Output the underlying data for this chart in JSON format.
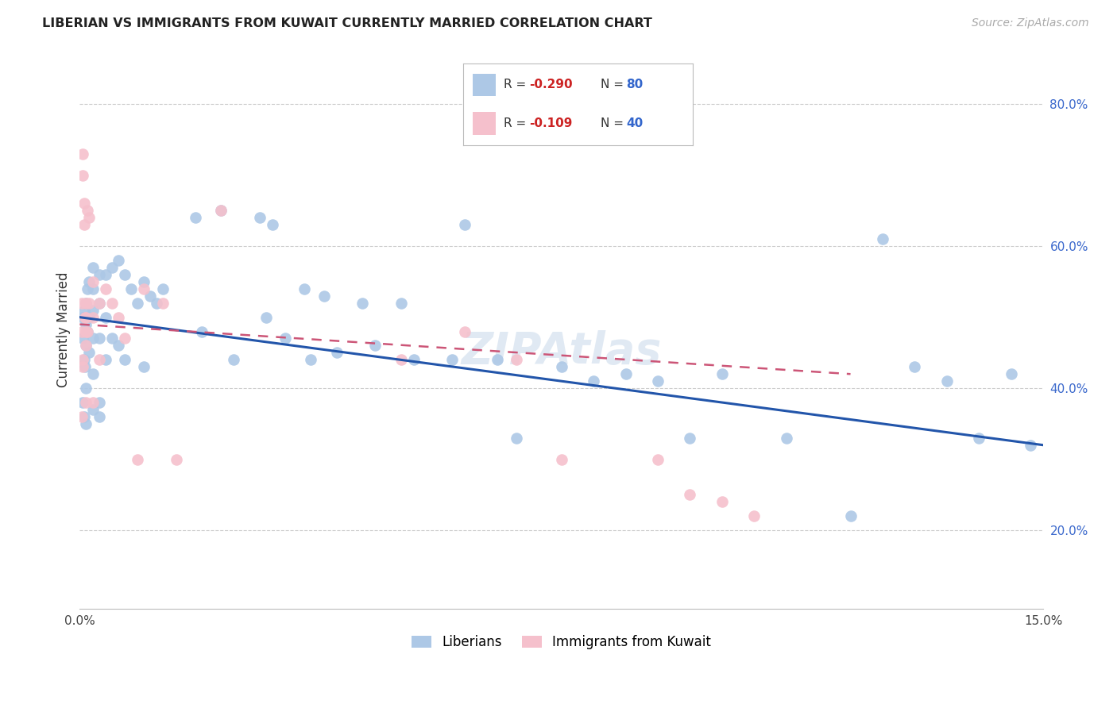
{
  "title": "LIBERIAN VS IMMIGRANTS FROM KUWAIT CURRENTLY MARRIED CORRELATION CHART",
  "source": "Source: ZipAtlas.com",
  "ylabel": "Currently Married",
  "legend_label_blue": "Liberians",
  "legend_label_pink": "Immigrants from Kuwait",
  "blue_color": "#adc8e6",
  "blue_line_color": "#2255aa",
  "pink_color": "#f5c0cc",
  "pink_line_color": "#cc5577",
  "background_color": "#ffffff",
  "grid_color": "#cccccc",
  "xlim": [
    0.0,
    0.15
  ],
  "ylim": [
    0.09,
    0.875
  ],
  "y_ticks": [
    0.2,
    0.4,
    0.6,
    0.8
  ],
  "y_tick_labels": [
    "20.0%",
    "40.0%",
    "60.0%",
    "80.0%"
  ],
  "blue_trend_x": [
    0.0,
    0.15
  ],
  "blue_trend_y": [
    0.5,
    0.32
  ],
  "pink_trend_x": [
    0.0,
    0.12
  ],
  "pink_trend_y": [
    0.49,
    0.42
  ],
  "blue_points_x": [
    0.0005,
    0.0005,
    0.0007,
    0.0007,
    0.0008,
    0.0008,
    0.001,
    0.001,
    0.001,
    0.001,
    0.0012,
    0.0012,
    0.0015,
    0.0015,
    0.0015,
    0.002,
    0.002,
    0.002,
    0.002,
    0.002,
    0.003,
    0.003,
    0.003,
    0.003,
    0.004,
    0.004,
    0.004,
    0.005,
    0.005,
    0.006,
    0.006,
    0.007,
    0.007,
    0.008,
    0.009,
    0.01,
    0.01,
    0.011,
    0.012,
    0.013,
    0.018,
    0.019,
    0.022,
    0.024,
    0.028,
    0.029,
    0.03,
    0.032,
    0.035,
    0.036,
    0.038,
    0.04,
    0.044,
    0.046,
    0.05,
    0.052,
    0.058,
    0.06,
    0.065,
    0.068,
    0.075,
    0.08,
    0.085,
    0.09,
    0.095,
    0.1,
    0.11,
    0.12,
    0.125,
    0.13,
    0.135,
    0.14,
    0.145,
    0.148,
    0.0005,
    0.0007,
    0.001,
    0.002,
    0.003
  ],
  "blue_points_y": [
    0.5,
    0.47,
    0.51,
    0.44,
    0.5,
    0.43,
    0.52,
    0.49,
    0.46,
    0.4,
    0.54,
    0.48,
    0.55,
    0.5,
    0.45,
    0.57,
    0.54,
    0.51,
    0.47,
    0.42,
    0.56,
    0.52,
    0.47,
    0.38,
    0.56,
    0.5,
    0.44,
    0.57,
    0.47,
    0.58,
    0.46,
    0.56,
    0.44,
    0.54,
    0.52,
    0.55,
    0.43,
    0.53,
    0.52,
    0.54,
    0.64,
    0.48,
    0.65,
    0.44,
    0.64,
    0.5,
    0.63,
    0.47,
    0.54,
    0.44,
    0.53,
    0.45,
    0.52,
    0.46,
    0.52,
    0.44,
    0.44,
    0.63,
    0.44,
    0.33,
    0.43,
    0.41,
    0.42,
    0.41,
    0.33,
    0.42,
    0.33,
    0.22,
    0.61,
    0.43,
    0.41,
    0.33,
    0.42,
    0.32,
    0.38,
    0.36,
    0.35,
    0.37,
    0.36
  ],
  "pink_points_x": [
    0.0003,
    0.0003,
    0.0005,
    0.0005,
    0.0005,
    0.0007,
    0.0007,
    0.0008,
    0.001,
    0.001,
    0.001,
    0.001,
    0.001,
    0.0012,
    0.0012,
    0.0015,
    0.0015,
    0.002,
    0.002,
    0.002,
    0.003,
    0.003,
    0.004,
    0.005,
    0.006,
    0.007,
    0.009,
    0.01,
    0.013,
    0.015,
    0.022,
    0.05,
    0.06,
    0.068,
    0.075,
    0.09,
    0.095,
    0.1,
    0.105,
    0.0003,
    0.0005
  ],
  "pink_points_y": [
    0.52,
    0.48,
    0.73,
    0.7,
    0.44,
    0.66,
    0.63,
    0.5,
    0.52,
    0.5,
    0.48,
    0.46,
    0.38,
    0.65,
    0.48,
    0.64,
    0.52,
    0.55,
    0.5,
    0.38,
    0.52,
    0.44,
    0.54,
    0.52,
    0.5,
    0.47,
    0.3,
    0.54,
    0.52,
    0.3,
    0.65,
    0.44,
    0.48,
    0.44,
    0.3,
    0.3,
    0.25,
    0.24,
    0.22,
    0.36,
    0.43
  ]
}
